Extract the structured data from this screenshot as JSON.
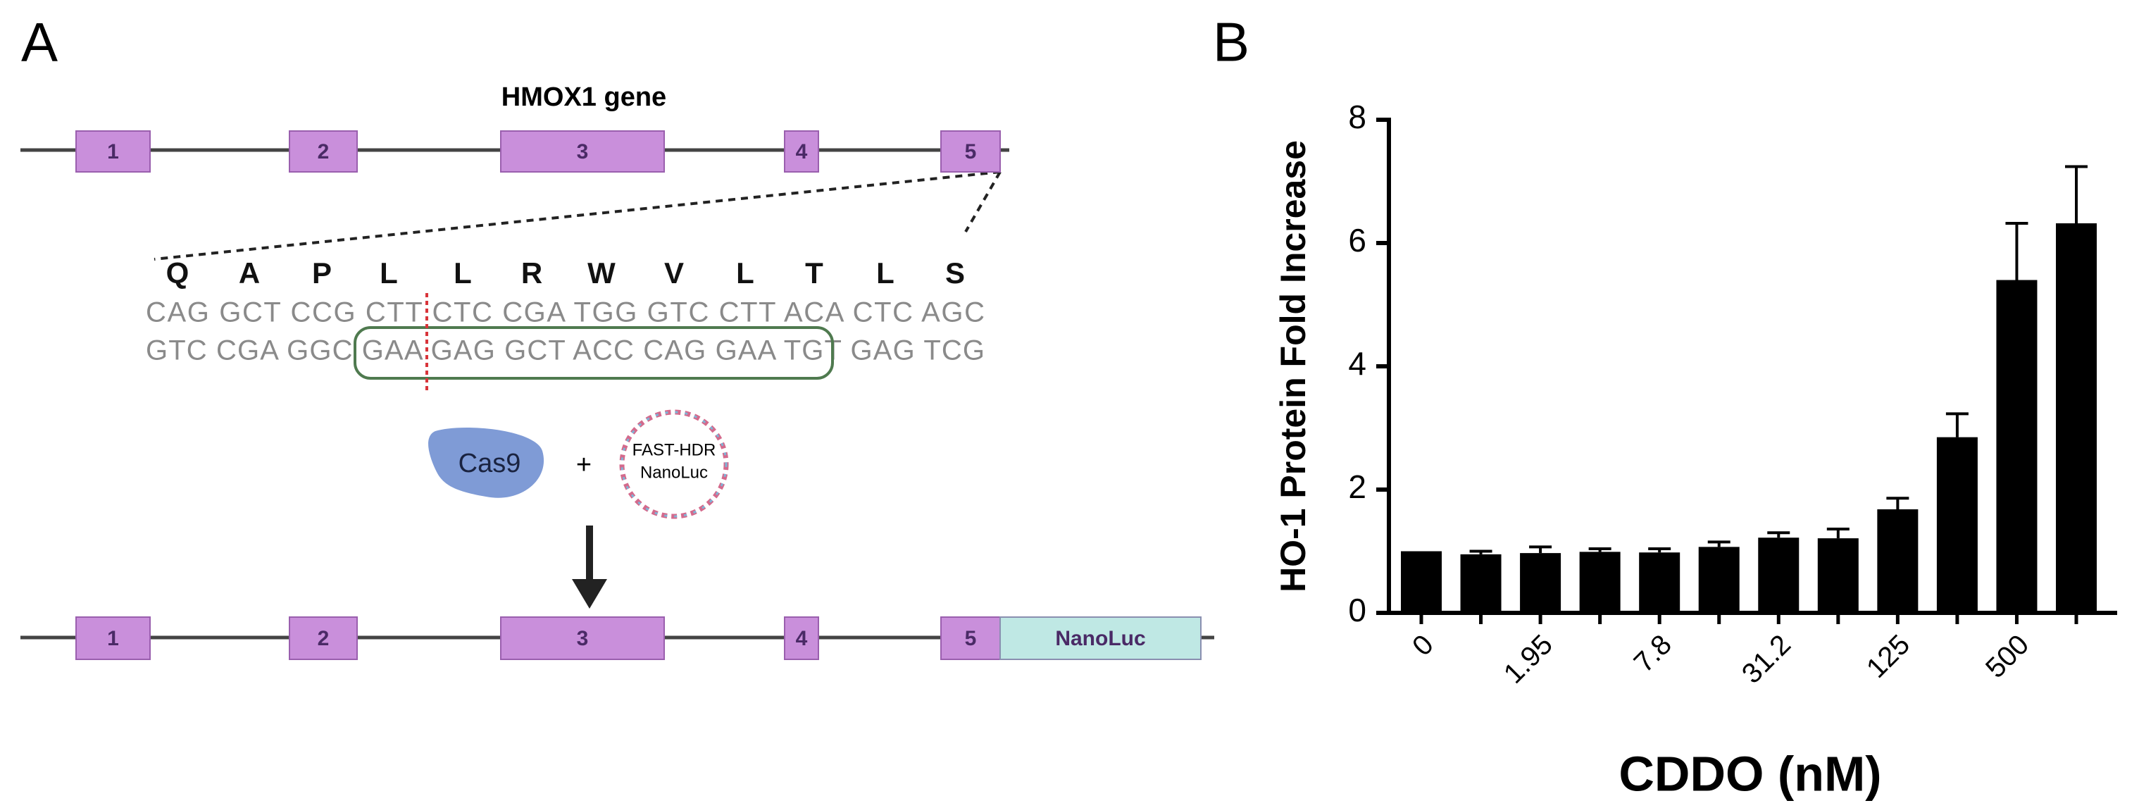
{
  "panel_labels": [
    "A",
    "B"
  ],
  "diagram": {
    "title": "HMOX1 gene",
    "gene_top": {
      "exons": [
        "1",
        "2",
        "3",
        "4",
        "5"
      ]
    },
    "amino_acids": [
      "Q",
      "A",
      "P",
      "L",
      "L",
      "R",
      "W",
      "V",
      "L",
      "T",
      "L",
      "S"
    ],
    "sequence_top": "CAG GCT CCG CTT CTC CGA TGG GTC CTT ACA CTC AGC",
    "sequence_bottom": "GTC CGA GGC GAA GAG GCT ACC CAG GAA TGT GAG TCG",
    "cas9": "Cas9",
    "plus": "+",
    "plasmid": [
      "FAST-HDR",
      "NanoLuc"
    ],
    "gene_bottom": {
      "exons": [
        "1",
        "2",
        "3",
        "4",
        "5",
        "NanoLuc"
      ]
    }
  },
  "chart_data": {
    "type": "bar",
    "x_label": "CDDO (nM)",
    "y_label": "HO-1 Protein Fold Increase",
    "categories": [
      "0",
      null,
      "1.95",
      null,
      "7.8",
      null,
      "31.2",
      null,
      "125",
      null,
      "500",
      null
    ],
    "values": [
      1.0,
      0.95,
      0.97,
      0.99,
      0.98,
      1.07,
      1.22,
      1.21,
      1.68,
      2.85,
      5.4,
      6.32
    ],
    "errors": [
      0,
      0.05,
      0.1,
      0.05,
      0.06,
      0.08,
      0.08,
      0.15,
      0.18,
      0.38,
      0.92,
      0.92
    ],
    "color": "#000000",
    "ylim": [
      0,
      8
    ],
    "yticks": [
      0,
      2,
      4,
      6,
      8
    ]
  }
}
